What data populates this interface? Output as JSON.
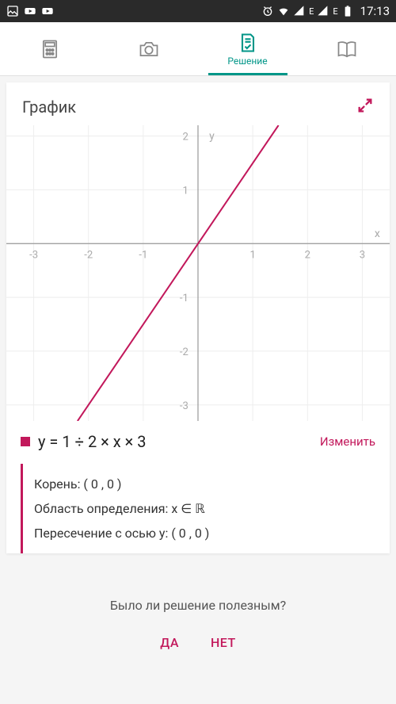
{
  "statusbar": {
    "time": "17:13",
    "signal1_label": "E",
    "signal2_label": "E"
  },
  "tabs": {
    "active_index": 2,
    "items": [
      {
        "label": ""
      },
      {
        "label": ""
      },
      {
        "label": "Решение"
      },
      {
        "label": ""
      }
    ]
  },
  "card": {
    "title": "График"
  },
  "chart": {
    "type": "line",
    "background_color": "#ffffff",
    "grid_color": "#eeeeee",
    "axis_color": "#999999",
    "line_color": "#c2185b",
    "line_width": 2,
    "x_axis_label": "x",
    "y_axis_label": "y",
    "xlim": [
      -3.5,
      3.5
    ],
    "ylim": [
      -3.3,
      2.2
    ],
    "xticks": [
      -3,
      -2,
      -1,
      1,
      2,
      3
    ],
    "yticks": [
      -3,
      -2,
      -1,
      1,
      2
    ],
    "points": [
      {
        "x": -2.2,
        "y": -3.3
      },
      {
        "x": 1.47,
        "y": 2.2
      }
    ]
  },
  "equation": {
    "text": "y = 1 ÷ 2 × x × 3",
    "change_label": "Изменить",
    "marker_color": "#c2185b"
  },
  "results": {
    "root_label": "Корень:",
    "root_value": "( 0 , 0 )",
    "domain_label": "Область определения:",
    "domain_value": "x ∈ ℝ",
    "yintercept_label": "Пересечение с осью y:",
    "yintercept_value": "( 0 , 0 )"
  },
  "feedback": {
    "question": "Было ли решение полезным?",
    "yes": "ДА",
    "no": "НЕТ"
  }
}
